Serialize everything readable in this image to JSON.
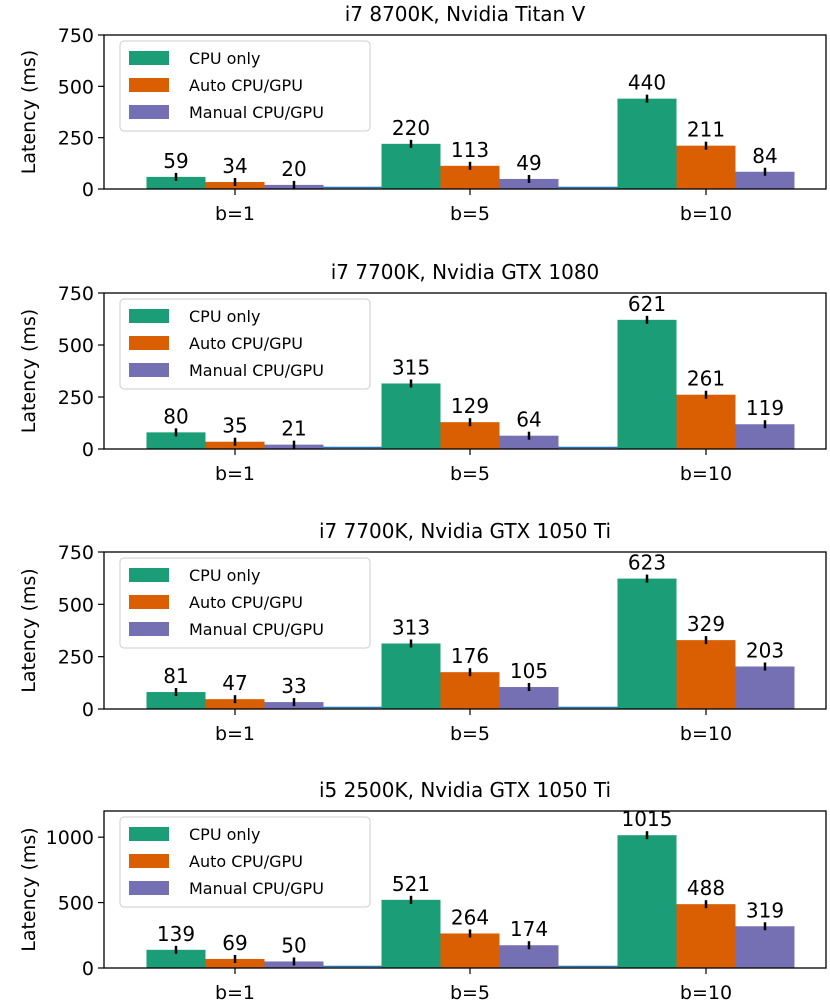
{
  "chart_data": [
    {
      "type": "bar",
      "title": "i7 8700K, Nvidia Titan V",
      "xlabel": "",
      "ylabel": "Latency (ms)",
      "categories": [
        "b=1",
        "b=5",
        "b=10"
      ],
      "ylim": [
        0,
        750
      ],
      "yticks": [
        0,
        250,
        500,
        750
      ],
      "legend": "top-left",
      "series": [
        {
          "name": "CPU only",
          "color": "#1b9e77",
          "values": [
            59,
            220,
            440
          ]
        },
        {
          "name": "Auto CPU/GPU",
          "color": "#d95f02",
          "values": [
            34,
            113,
            211
          ]
        },
        {
          "name": "Manual CPU/GPU",
          "color": "#7570b3",
          "values": [
            20,
            49,
            84
          ]
        }
      ]
    },
    {
      "type": "bar",
      "title": "i7 7700K, Nvidia GTX 1080",
      "xlabel": "",
      "ylabel": "Latency (ms)",
      "categories": [
        "b=1",
        "b=5",
        "b=10"
      ],
      "ylim": [
        0,
        750
      ],
      "yticks": [
        0,
        250,
        500,
        750
      ],
      "legend": "top-left",
      "series": [
        {
          "name": "CPU only",
          "color": "#1b9e77",
          "values": [
            80,
            315,
            621
          ]
        },
        {
          "name": "Auto CPU/GPU",
          "color": "#d95f02",
          "values": [
            35,
            129,
            261
          ]
        },
        {
          "name": "Manual CPU/GPU",
          "color": "#7570b3",
          "values": [
            21,
            64,
            119
          ]
        }
      ]
    },
    {
      "type": "bar",
      "title": "i7 7700K, Nvidia GTX 1050 Ti",
      "xlabel": "",
      "ylabel": "Latency (ms)",
      "categories": [
        "b=1",
        "b=5",
        "b=10"
      ],
      "ylim": [
        0,
        750
      ],
      "yticks": [
        0,
        250,
        500,
        750
      ],
      "legend": "top-left",
      "series": [
        {
          "name": "CPU only",
          "color": "#1b9e77",
          "values": [
            81,
            313,
            623
          ]
        },
        {
          "name": "Auto CPU/GPU",
          "color": "#d95f02",
          "values": [
            47,
            176,
            329
          ]
        },
        {
          "name": "Manual CPU/GPU",
          "color": "#7570b3",
          "values": [
            33,
            105,
            203
          ]
        }
      ]
    },
    {
      "type": "bar",
      "title": "i5 2500K, Nvidia GTX 1050 Ti",
      "xlabel": "",
      "ylabel": "Latency (ms)",
      "categories": [
        "b=1",
        "b=5",
        "b=10"
      ],
      "ylim": [
        0,
        1200
      ],
      "yticks": [
        0,
        500,
        1000
      ],
      "legend": "top-left",
      "series": [
        {
          "name": "CPU only",
          "color": "#1b9e77",
          "values": [
            139,
            521,
            1015
          ]
        },
        {
          "name": "Auto CPU/GPU",
          "color": "#d95f02",
          "values": [
            69,
            264,
            488
          ]
        },
        {
          "name": "Manual CPU/GPU",
          "color": "#7570b3",
          "values": [
            50,
            174,
            319
          ]
        }
      ]
    }
  ]
}
